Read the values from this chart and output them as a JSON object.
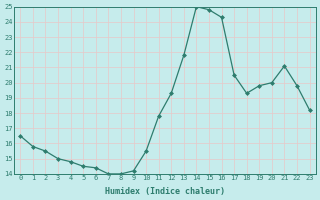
{
  "x": [
    0,
    1,
    2,
    3,
    4,
    5,
    6,
    7,
    8,
    9,
    10,
    11,
    12,
    13,
    14,
    15,
    16,
    17,
    18,
    19,
    20,
    21,
    22,
    23
  ],
  "y": [
    16.5,
    15.8,
    15.5,
    15.0,
    14.8,
    14.5,
    14.4,
    14.0,
    14.0,
    14.2,
    15.5,
    17.8,
    19.3,
    21.8,
    25.0,
    24.8,
    24.3,
    20.5,
    19.3,
    19.8,
    20.0,
    21.1,
    19.8,
    18.2
  ],
  "xlabel": "Humidex (Indice chaleur)",
  "ylim": [
    14,
    25
  ],
  "xlim": [
    -0.5,
    23.5
  ],
  "yticks": [
    14,
    15,
    16,
    17,
    18,
    19,
    20,
    21,
    22,
    23,
    24,
    25
  ],
  "xticks": [
    0,
    1,
    2,
    3,
    4,
    5,
    6,
    7,
    8,
    9,
    10,
    11,
    12,
    13,
    14,
    15,
    16,
    17,
    18,
    19,
    20,
    21,
    22,
    23
  ],
  "line_color": "#2e7d6e",
  "marker": "D",
  "marker_size": 2.0,
  "bg_color": "#c6ecec",
  "grid_color": "#e8c8c8",
  "xlabel_fontsize": 6.0,
  "tick_fontsize": 5.0
}
